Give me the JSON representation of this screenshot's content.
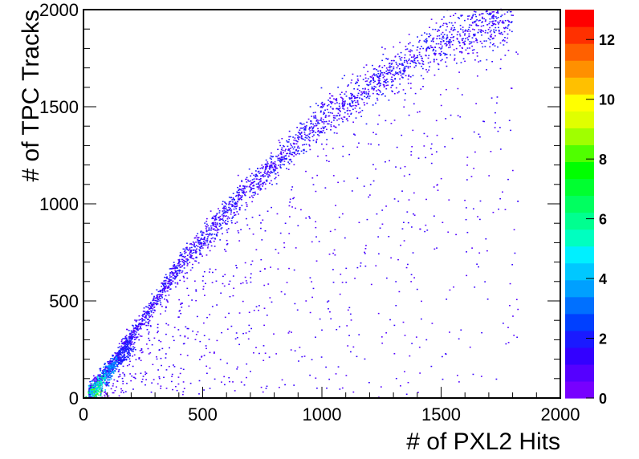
{
  "chart_data": {
    "type": "heatmap",
    "title": "",
    "xlabel": "# of PXL2 Hits",
    "ylabel": "# of TPC Tracks",
    "xlim": [
      0,
      2000
    ],
    "ylim": [
      0,
      2000
    ],
    "x_ticks": [
      "0",
      "500",
      "1000",
      "1500",
      "2000"
    ],
    "y_ticks": [
      "0",
      "500",
      "1000",
      "1500",
      "2000"
    ],
    "colorbar": {
      "min": 0,
      "max": 13,
      "ticks": [
        "0",
        "2",
        "4",
        "6",
        "8",
        "10",
        "12"
      ],
      "colors": [
        "#7700ff",
        "#5500ff",
        "#3300ff",
        "#1a1aff",
        "#0040ff",
        "#0070ff",
        "#00a0ff",
        "#00c8ff",
        "#00f0ff",
        "#00ffc0",
        "#00ff90",
        "#00ff60",
        "#00ff30",
        "#00ff00",
        "#50ff00",
        "#a0ff00",
        "#e0ff00",
        "#ffff00",
        "#ffc000",
        "#ff9000",
        "#ff6000",
        "#ff3000",
        "#ff0000"
      ]
    },
    "distribution": {
      "main_band": [
        [
          20,
          30
        ],
        [
          100,
          150
        ],
        [
          200,
          320
        ],
        [
          300,
          500
        ],
        [
          400,
          680
        ],
        [
          500,
          820
        ],
        [
          600,
          960
        ],
        [
          700,
          1090
        ],
        [
          800,
          1200
        ],
        [
          900,
          1320
        ],
        [
          1000,
          1430
        ],
        [
          1100,
          1520
        ],
        [
          1200,
          1600
        ],
        [
          1300,
          1680
        ],
        [
          1400,
          1760
        ],
        [
          1500,
          1830
        ],
        [
          1600,
          1880
        ],
        [
          1700,
          1920
        ],
        [
          1800,
          1960
        ]
      ],
      "hot_region": [
        [
          40,
          20
        ],
        [
          60,
          40
        ],
        [
          80,
          80
        ],
        [
          100,
          120
        ],
        [
          120,
          160
        ]
      ]
    }
  }
}
